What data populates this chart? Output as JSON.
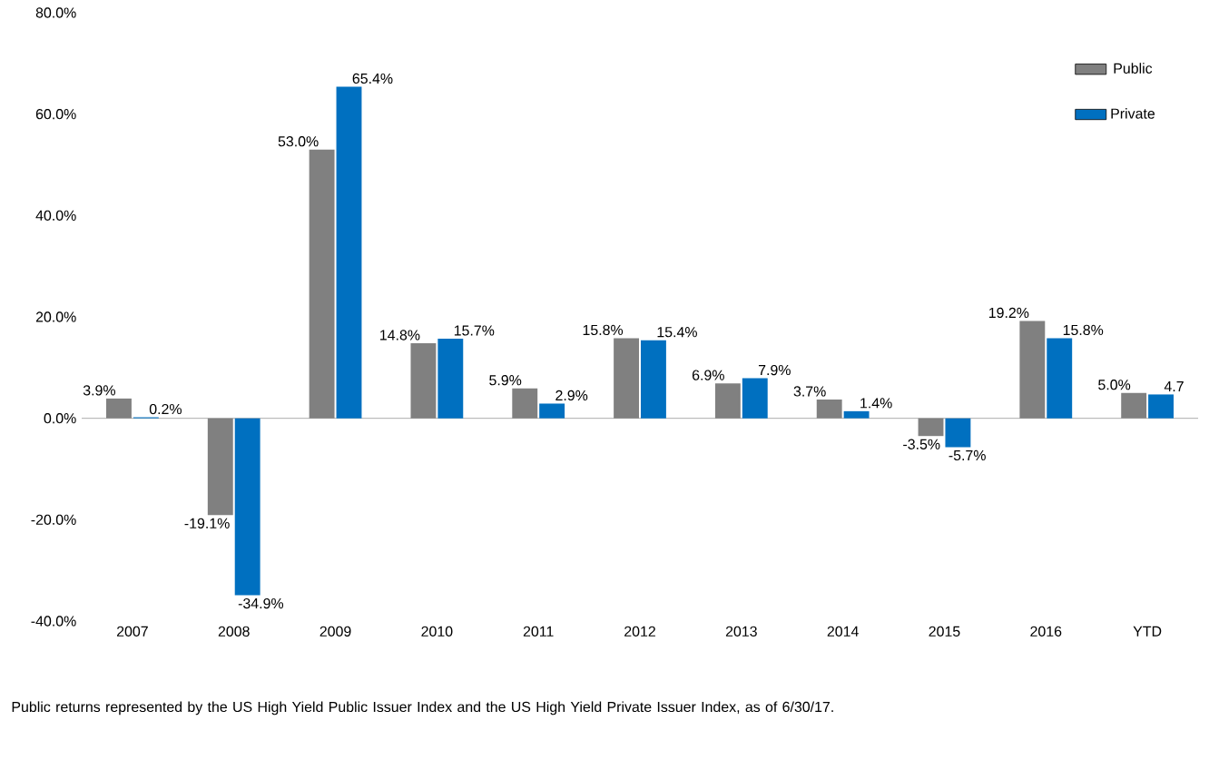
{
  "chart_data": {
    "type": "bar",
    "categories": [
      "2007",
      "2008",
      "2009",
      "2010",
      "2011",
      "2012",
      "2013",
      "2014",
      "2015",
      "2016",
      "YTD"
    ],
    "series": [
      {
        "name": "Public",
        "color": "#808080",
        "values": [
          3.9,
          -19.1,
          53.0,
          14.8,
          5.9,
          15.8,
          6.9,
          3.7,
          -3.5,
          19.2,
          5.0
        ],
        "value_labels": [
          "3.9%",
          "-19.1%",
          "53.0%",
          "14.8%",
          "5.9%",
          "15.8%",
          "6.9%",
          "3.7%",
          "-3.5%",
          "19.2%",
          "5.0%"
        ]
      },
      {
        "name": "Private",
        "color": "#0070c0",
        "values": [
          0.2,
          -34.9,
          65.4,
          15.7,
          2.9,
          15.4,
          7.9,
          1.4,
          -5.7,
          15.8,
          4.7
        ],
        "value_labels": [
          "0.2%",
          "-34.9%",
          "65.4%",
          "15.7%",
          "2.9%",
          "15.4%",
          "7.9%",
          "1.4%",
          "-5.7%",
          "15.8%",
          "4.7"
        ]
      }
    ],
    "ylim": [
      -40,
      80
    ],
    "yticks": [
      {
        "value": -40,
        "label": "-40.0%"
      },
      {
        "value": -20,
        "label": "-20.0%"
      },
      {
        "value": 0,
        "label": "0.0%"
      },
      {
        "value": 20,
        "label": "20.0%"
      },
      {
        "value": 40,
        "label": "40.0%"
      },
      {
        "value": 60,
        "label": "60.0%"
      },
      {
        "value": 80,
        "label": "80.0%"
      }
    ],
    "legend": "top right",
    "annotations": [
      "Public returns represented by the US High Yield Public Issuer Index and the US High Yield Private Issuer Index, as of 6/30/17."
    ]
  }
}
